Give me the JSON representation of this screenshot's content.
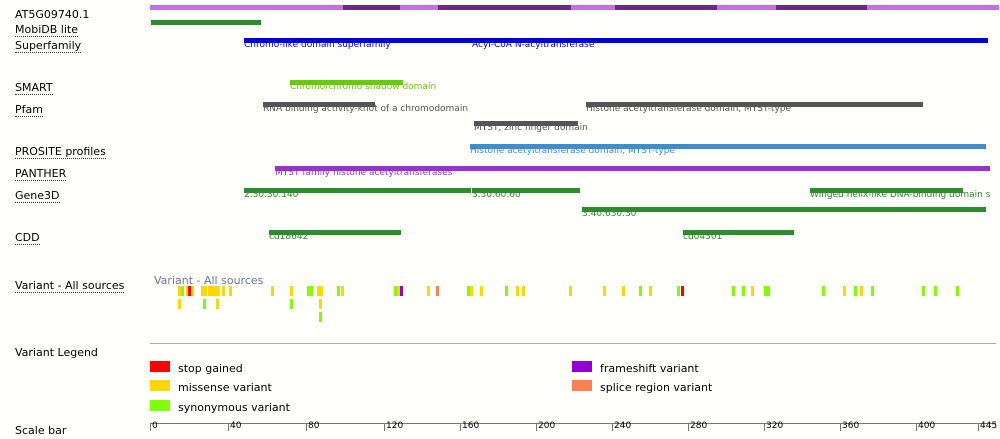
{
  "rows": {
    "protein": "AT5G09740.1",
    "mobidb": "MobiDB lite",
    "superfamily": "Superfamily",
    "smart": "SMART",
    "pfam": "Pfam",
    "prosite": "PROSITE profiles",
    "panther": "PANTHER",
    "gene3d": "Gene3D",
    "cdd": "CDD",
    "variant": "Variant - All sources",
    "legend": "Variant Legend",
    "scale": "Scale bar"
  },
  "features": {
    "superfamily_1": "Chromo-like domain superfamily",
    "superfamily_2": "Acyl-CoA N-acyltransferase",
    "smart_1": "Chromo/chromo shadow domain",
    "pfam_1": "RNA binding activity-knot of a chromodomain",
    "pfam_2": "MYST, zinc finger domain",
    "pfam_3": "Histone acetyltransferase domain, MYST-type",
    "prosite_1": "Histone acetyltransferase domain, MYST-type",
    "panther_1": "MYST family histone acetyltransferases",
    "gene3d_1": "2.30.30.140",
    "gene3d_2": "3.30.60.60",
    "gene3d_3": "3.40.630.30",
    "gene3d_4": "Winged helix-like DNA-binding domain s",
    "cdd_1": "cd18642",
    "cdd_2": "cd04301",
    "variant_track": "Variant - All sources"
  },
  "legend": {
    "stop": "stop gained",
    "missense": "missense variant",
    "synonymous": "synonymous variant",
    "frameshift": "frameshift variant",
    "splice": "splice region variant"
  },
  "colors": {
    "protein_light": "#c86ee6",
    "protein_dark": "#6a2a86",
    "mobidb": "#2e8b2e",
    "superfamily": "#0000dd",
    "smart": "#66cc00",
    "pfam": "#555555",
    "prosite": "#3b8fcf",
    "panther": "#9932cc",
    "gene3d": "#2e8b2e",
    "cdd": "#2e8b2e",
    "stop": "#ff0000",
    "missense": "#ffd700",
    "synonymous": "#7fff00",
    "frameshift": "#9400d3",
    "splice": "#ff7f50"
  },
  "scale": {
    "ticks": [
      "0",
      "40",
      "80",
      "120",
      "160",
      "200",
      "240",
      "280",
      "320",
      "360",
      "400",
      "445"
    ]
  }
}
